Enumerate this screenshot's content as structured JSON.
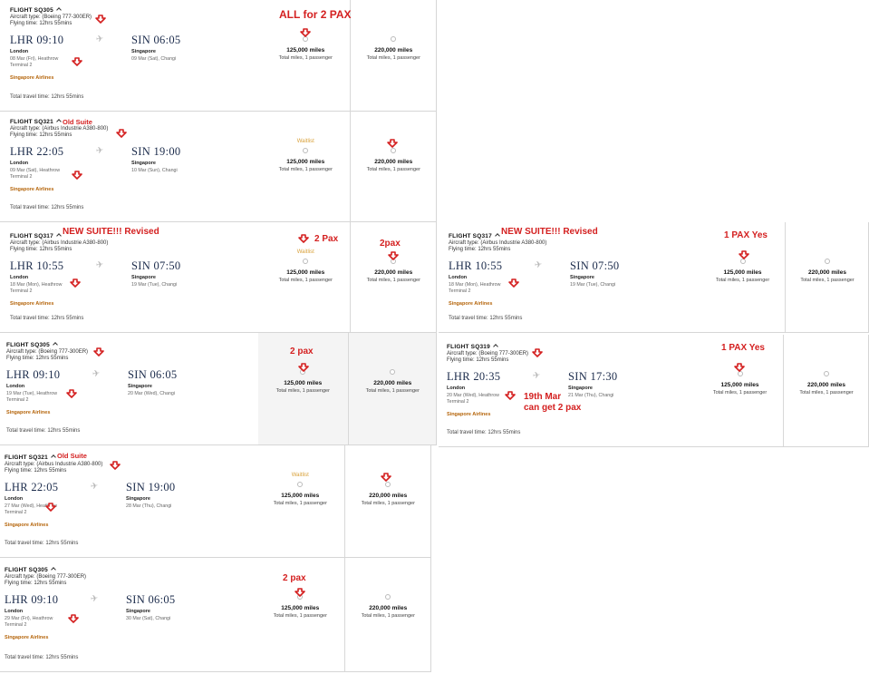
{
  "labels": {
    "total_miles": "Total miles, 1 passenger",
    "waitlist": "Waitlist",
    "travel_time": "Total travel time: 12hrs 55mins",
    "flying_time": "Flying time: 12hrs 55mins",
    "origin_city": "London",
    "dest_city": "Singapore",
    "terminal": "Terminal 2",
    "airline": "Singapore Airlines",
    "miles_low": "125,000 miles",
    "miles_high": "220,000 miles"
  },
  "panels": [
    {
      "flight": "FLIGHT SQ305",
      "aircraft": "Aircraft type: (Boeing 777-300ER)",
      "dep_time": "LHR 09:10",
      "arr_time": "SIN 06:05",
      "dep_date": "08 Mar (Fri), Heathrow",
      "arr_date": "09 Mar (Sat), Changi",
      "notes": [
        "ALL for 2 PAX"
      ]
    },
    {
      "flight": "FLIGHT SQ321",
      "aircraft": "Aircraft type: (Airbus Industrie A380-800)",
      "dep_time": "LHR 22:05",
      "arr_time": "SIN 19:00",
      "dep_date": "09 Mar (Sat), Heathrow",
      "arr_date": "10 Mar (Sun), Changi",
      "notes": [
        "Old Suite"
      ]
    },
    {
      "flight": "FLIGHT SQ317",
      "aircraft": "Aircraft type: (Airbus Industrie A380-800)",
      "dep_time": "LHR 10:55",
      "arr_time": "SIN 07:50",
      "dep_date": "18 Mar (Mon), Heathrow",
      "arr_date": "19 Mar (Tue), Changi",
      "notes": [
        "NEW SUITE!!! Revised",
        "2 Pax",
        "2pax"
      ]
    },
    {
      "flight": "FLIGHT SQ305",
      "aircraft": "Aircraft type: (Boeing 777-300ER)",
      "dep_time": "LHR 09:10",
      "arr_time": "SIN 06:05",
      "dep_date": "19 Mar (Tue), Heathrow",
      "arr_date": "20 Mar (Wed), Changi",
      "notes": [
        "2 pax"
      ]
    },
    {
      "flight": "FLIGHT SQ321",
      "aircraft": "Aircraft type: (Airbus Industrie A380-800)",
      "dep_time": "LHR 22:05",
      "arr_time": "SIN 19:00",
      "dep_date": "27 Mar (Wed), Heathrow",
      "arr_date": "28 Mar (Thu), Changi",
      "notes": [
        "Old Suite"
      ]
    },
    {
      "flight": "FLIGHT SQ305",
      "aircraft": "Aircraft type: (Boeing 777-300ER)",
      "dep_time": "LHR 09:10",
      "arr_time": "SIN 06:05",
      "dep_date": "29 Mar (Fri), Heathrow",
      "arr_date": "30 Mar (Sat), Changi",
      "notes": [
        "2 pax"
      ]
    },
    {
      "flight": "FLIGHT SQ317",
      "aircraft": "Aircraft type: (Airbus Industrie A380-800)",
      "dep_time": "LHR 10:55",
      "arr_time": "SIN 07:50",
      "dep_date": "18 Mar (Mon), Heathrow",
      "arr_date": "19 Mar (Tue), Changi",
      "notes": [
        "NEW SUITE!!! Revised",
        "1 PAX Yes"
      ]
    },
    {
      "flight": "FLIGHT SQ319",
      "aircraft": "Aircraft type: (Boeing 777-300ER)",
      "dep_time": "LHR 20:35",
      "arr_time": "SIN 17:30",
      "dep_date": "20 Mar (Wed), Heathrow",
      "arr_date": "21 Mar (Thu), Changi",
      "notes": [
        "1 PAX Yes",
        "19th Mar\ncan get 2 pax"
      ]
    }
  ],
  "colors": {
    "annotation_red": "#d42020",
    "airline_orange": "#b5650b",
    "waitlist_gold": "#d9a13a",
    "time_navy": "#1b2b4b"
  }
}
